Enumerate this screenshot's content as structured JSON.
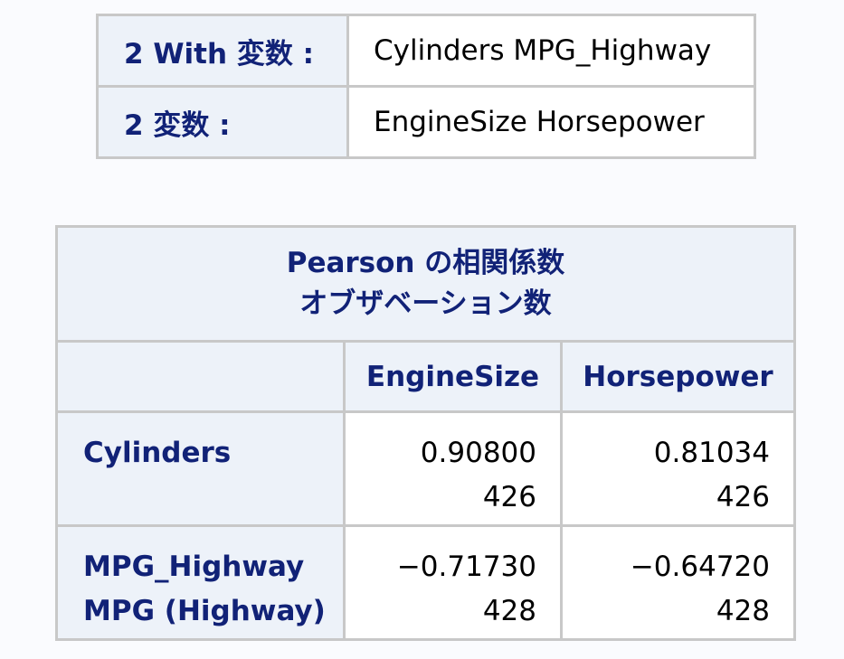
{
  "variables_table": {
    "rows": [
      {
        "label": "2 With 変数 :",
        "value": "Cylinders MPG_Highway"
      },
      {
        "label": "2 変数 :",
        "value": "EngineSize Horsepower"
      }
    ]
  },
  "correlation_table": {
    "title_line1": "Pearson の相関係数",
    "title_line2": "オブザベーション数",
    "columns": [
      "EngineSize",
      "Horsepower"
    ],
    "rows": [
      {
        "name": "Cylinders",
        "label": "",
        "cells": [
          {
            "r": "0.90800",
            "n": "426"
          },
          {
            "r": "0.81034",
            "n": "426"
          }
        ]
      },
      {
        "name": "MPG_Highway",
        "label": "MPG (Highway)",
        "cells": [
          {
            "r": "−0.71730",
            "n": "428"
          },
          {
            "r": "−0.64720",
            "n": "428"
          }
        ]
      }
    ]
  }
}
